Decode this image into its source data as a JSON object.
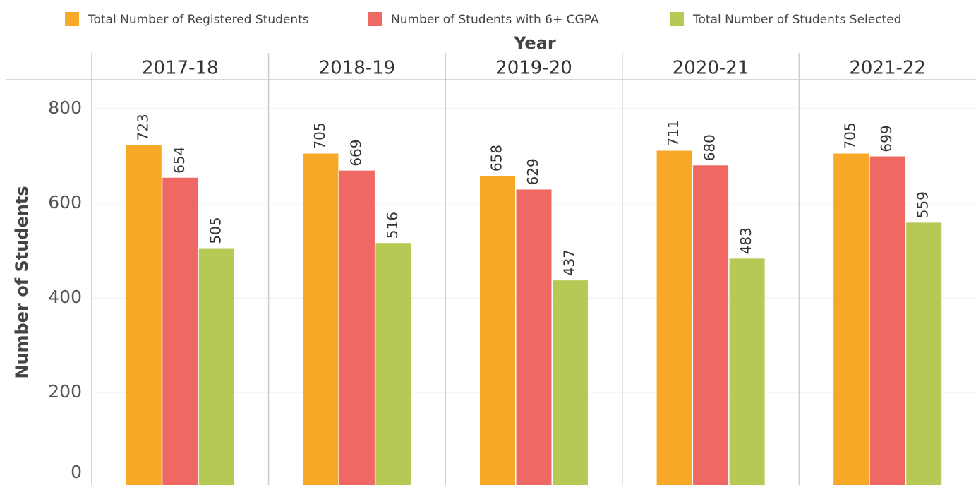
{
  "chart_data": {
    "type": "bar",
    "x_axis_label": "Year",
    "y_axis_label": "Number of Students",
    "categories": [
      "2017-18",
      "2018-19",
      "2019-20",
      "2020-21",
      "2021-22"
    ],
    "series": [
      {
        "name": "Total Number of Registered Students",
        "color": "#f7a826",
        "values": [
          723,
          705,
          658,
          711,
          705
        ]
      },
      {
        "name": "Number of Students with 6+ CGPA",
        "color": "#ef6863",
        "values": [
          654,
          669,
          629,
          680,
          699
        ]
      },
      {
        "name": "Total Number of Students Selected",
        "color": "#b6c955",
        "values": [
          505,
          516,
          437,
          483,
          559
        ]
      }
    ],
    "ylim": [
      0,
      861
    ],
    "yticks": [
      0,
      200,
      400,
      600,
      800
    ],
    "grid": true,
    "legend": "top"
  }
}
